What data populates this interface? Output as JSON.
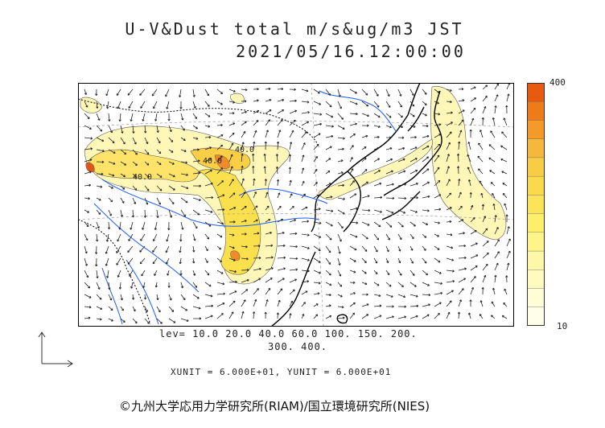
{
  "header": {
    "title_line1": "U-V&Dust total m/s&ug/m3 JST",
    "title_line2": "2021/05/16.12:00:00"
  },
  "colorbar": {
    "max_label": "400",
    "min_label": "10",
    "colors": [
      "#e85a10",
      "#ef7a1a",
      "#f39a2a",
      "#f6b83c",
      "#f8cc44",
      "#fad94c",
      "#fbe45a",
      "#fdee6c",
      "#fef48a",
      "#fef7a8",
      "#fefac0",
      "#fffcd6",
      "#fffee8"
    ]
  },
  "levels": {
    "line1": "lev= 10.0 20.0 40.0 60.0 100. 150. 200.",
    "line2": "300. 400."
  },
  "units_text": "XUNIT = 6.000E+01, YUNIT = 6.000E+01",
  "contour_labels": [
    "40.0",
    "40.0",
    "40.0"
  ],
  "copyright": "©九州大学応用力学研究所(RIAM)/国立環境研究所(NIES)"
}
